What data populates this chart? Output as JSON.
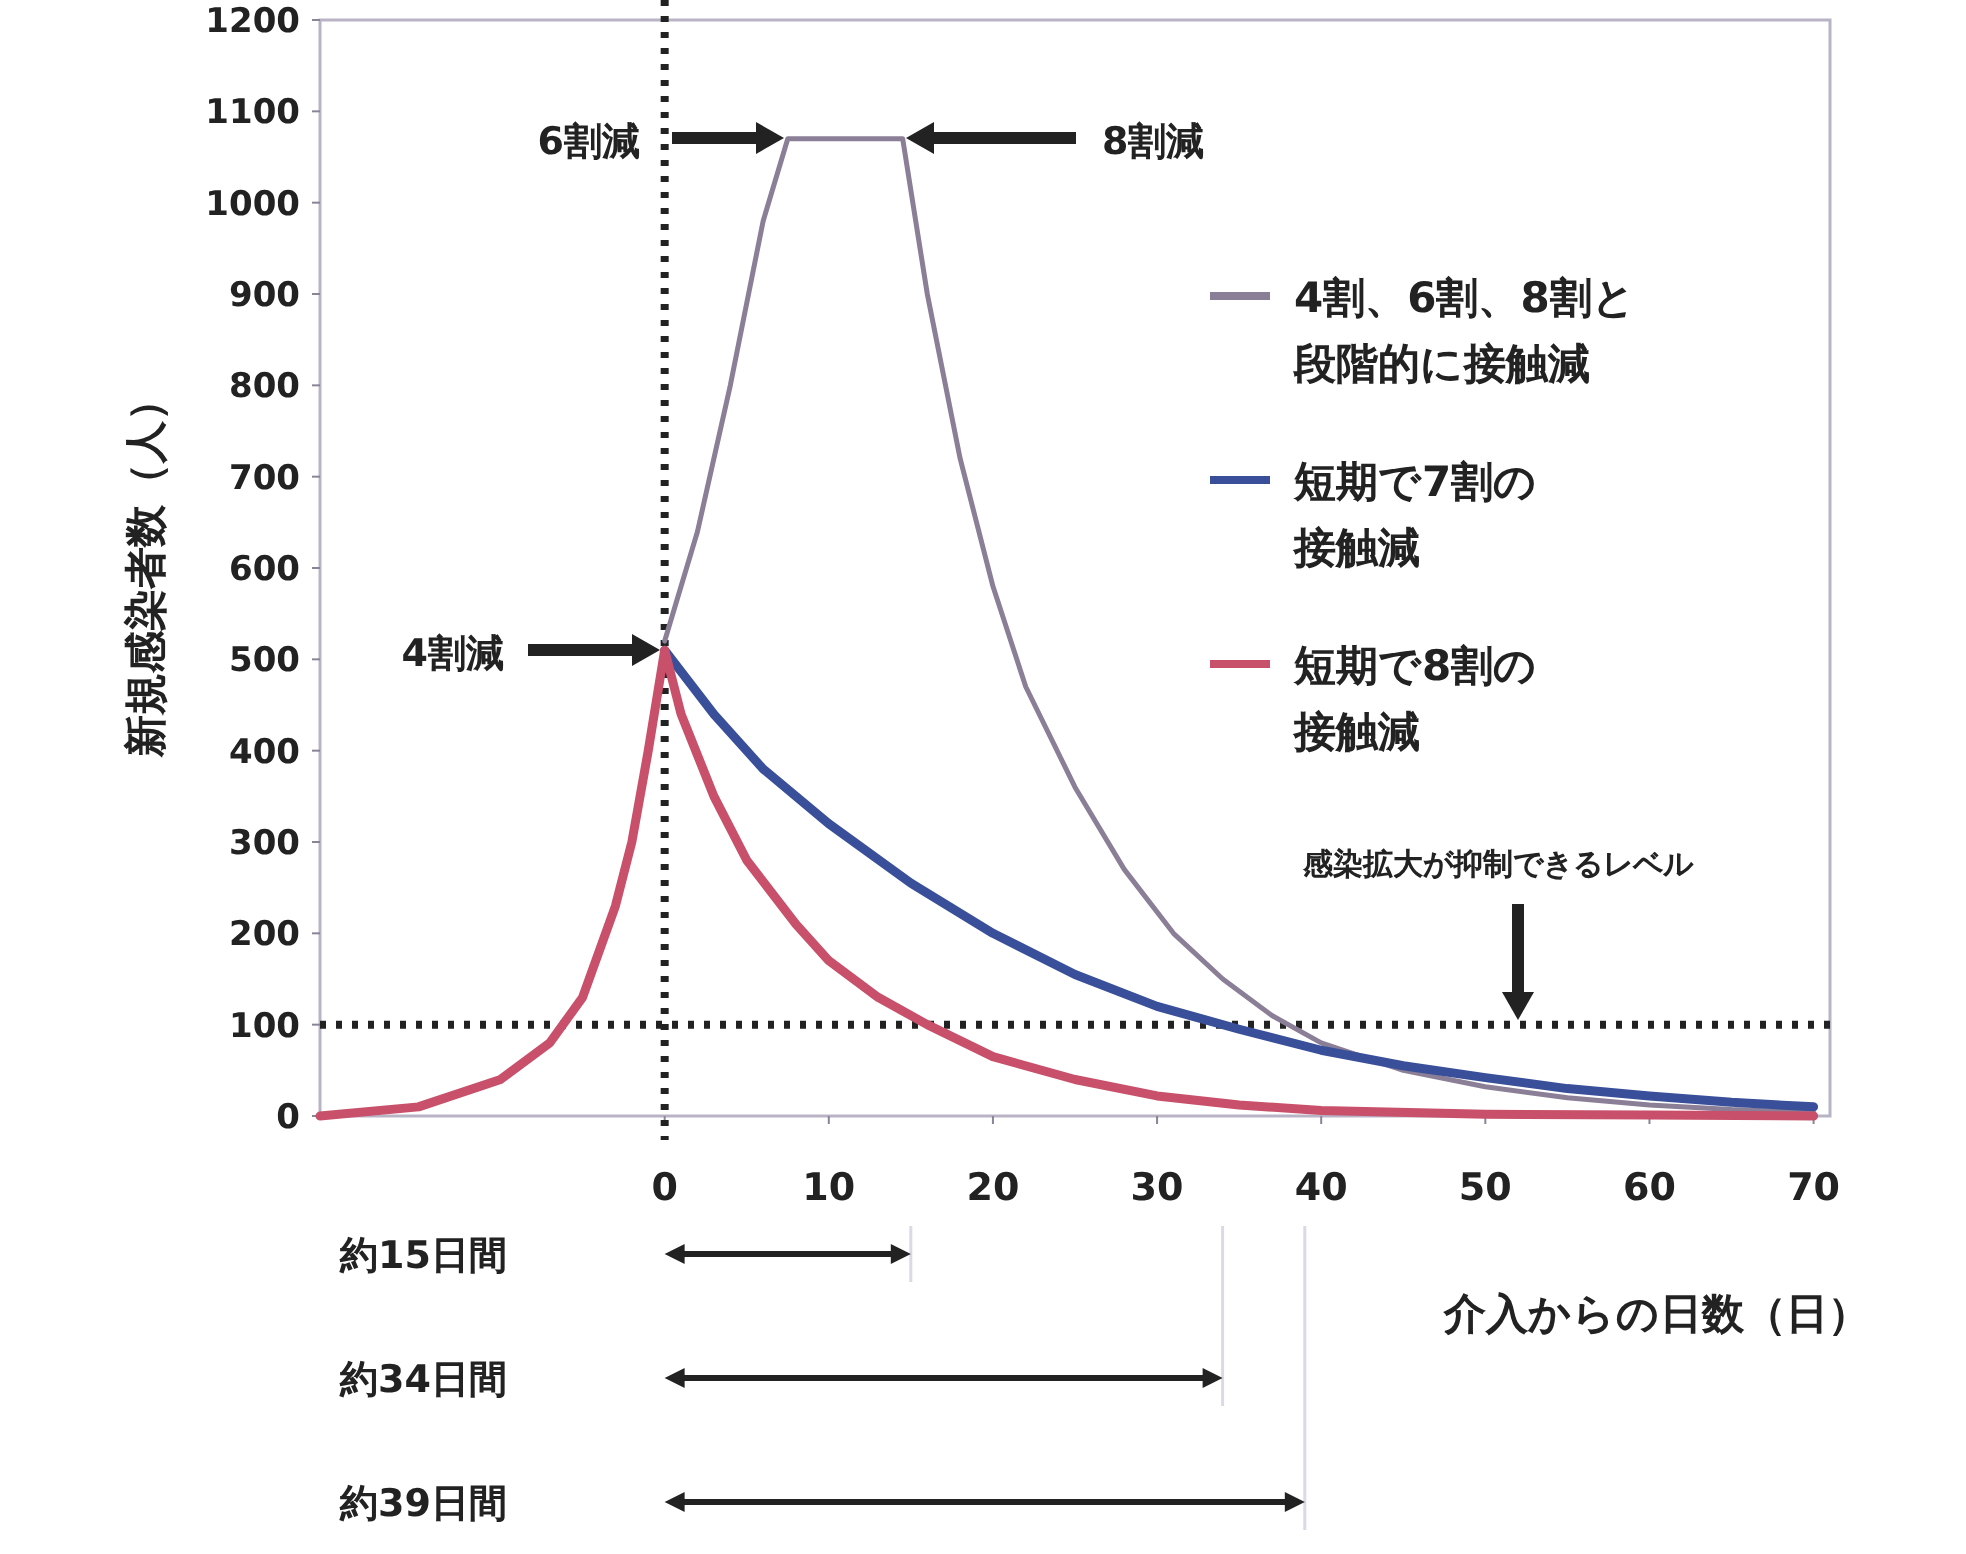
{
  "chart_data": {
    "type": "line",
    "ylabel": "新規感染者数（人）",
    "xlabel": "介入からの日数（日）",
    "xlim": [
      -21,
      71
    ],
    "ylim": [
      0,
      1200
    ],
    "xticks": [
      0,
      10,
      20,
      30,
      40,
      50,
      60,
      70
    ],
    "yticks": [
      0,
      100,
      200,
      300,
      400,
      500,
      600,
      700,
      800,
      900,
      1000,
      1100,
      1200
    ],
    "grid": false,
    "legend": "right",
    "marker": "none",
    "line_style": "solid",
    "series": [
      {
        "name": "4割、6割、8割と段階的に接触減",
        "color": "#8a7f96",
        "x": [
          0,
          2,
          4,
          6,
          7.5,
          14.5,
          16,
          18,
          20,
          22,
          25,
          28,
          31,
          34,
          37,
          40,
          45,
          50,
          55,
          60,
          65,
          70
        ],
        "values": [
          520,
          640,
          800,
          980,
          1070,
          1070,
          900,
          720,
          580,
          470,
          360,
          270,
          200,
          150,
          110,
          80,
          50,
          32,
          20,
          12,
          7,
          4
        ]
      },
      {
        "name": "短期で7割の接触減",
        "color": "#3a4f9a",
        "x": [
          0,
          3,
          6,
          10,
          15,
          20,
          25,
          30,
          35,
          40,
          45,
          50,
          55,
          60,
          65,
          70
        ],
        "values": [
          510,
          440,
          380,
          320,
          255,
          200,
          155,
          120,
          95,
          72,
          55,
          42,
          30,
          22,
          15,
          10
        ]
      },
      {
        "name": "短期で8割の接触減",
        "color": "#c8506a",
        "x": [
          -21,
          -15,
          -10,
          -7,
          -5,
          -3,
          -2,
          -1,
          0,
          1,
          3,
          5,
          8,
          10,
          13,
          16,
          20,
          25,
          30,
          35,
          40,
          50,
          60,
          70
        ],
        "values": [
          0,
          10,
          40,
          80,
          130,
          230,
          300,
          400,
          510,
          440,
          350,
          280,
          210,
          170,
          130,
          100,
          65,
          40,
          22,
          12,
          6,
          2,
          1,
          0
        ]
      }
    ],
    "ref_lines": [
      {
        "axis": "y",
        "value": 100,
        "line_style": "dotted",
        "color": "#222222"
      },
      {
        "axis": "x",
        "value": 0,
        "line_style": "dotted",
        "color": "#222222"
      }
    ],
    "annotations": [
      "4割減",
      "6割減",
      "8割減",
      "感染拡大が抑制できるレベル",
      "約15日間",
      "約34日間",
      "約39日間"
    ]
  }
}
